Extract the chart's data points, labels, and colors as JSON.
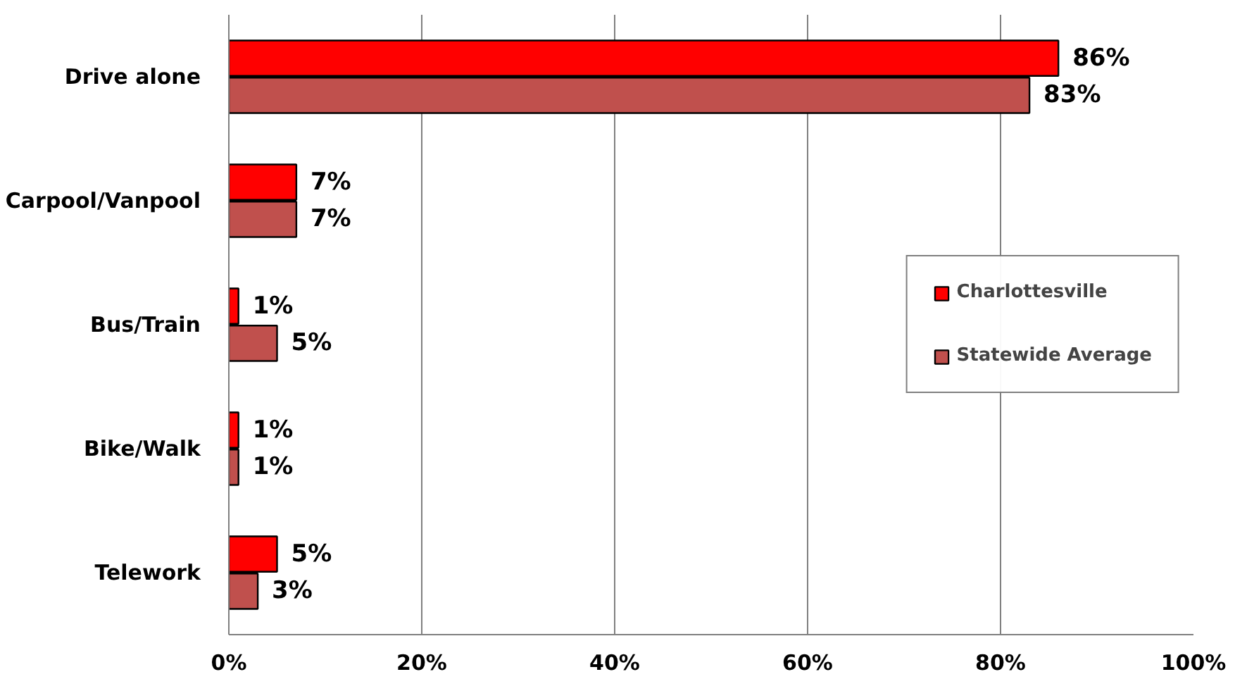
{
  "chart_data": {
    "type": "bar",
    "orientation": "horizontal",
    "categories": [
      "Drive alone",
      "Carpool/Vanpool",
      "Bus/Train",
      "Bike/Walk",
      "Telework"
    ],
    "series": [
      {
        "name": "Charlottesville",
        "color": "#ff0000",
        "values": [
          86,
          7,
          1,
          1,
          5
        ],
        "value_labels": [
          "86%",
          "7%",
          "1%",
          "1%",
          "5%"
        ]
      },
      {
        "name": "Statewide Average",
        "color": "#c0504d",
        "values": [
          83,
          7,
          5,
          1,
          3
        ],
        "value_labels": [
          "83%",
          "7%",
          "5%",
          "1%",
          "3%"
        ]
      }
    ],
    "xlim": [
      0,
      100
    ],
    "xticks": [
      {
        "value": 0,
        "label": "0%"
      },
      {
        "value": 20,
        "label": "20%"
      },
      {
        "value": 40,
        "label": "40%"
      },
      {
        "value": 60,
        "label": "60%"
      },
      {
        "value": 80,
        "label": "80%"
      },
      {
        "value": 100,
        "label": "100%"
      }
    ],
    "grid": "x",
    "legend": "right"
  }
}
